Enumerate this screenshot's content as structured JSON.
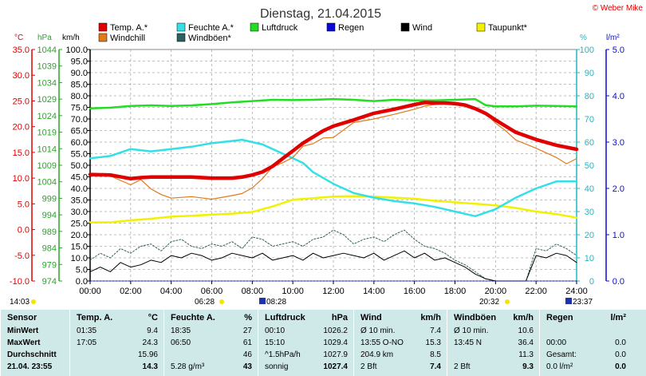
{
  "title": "Dienstag, 21.04.2015",
  "copyright": "© Weber Mike",
  "legend": [
    {
      "label": "Temp. A.*",
      "color": "#e00000"
    },
    {
      "label": "Feuchte A.*",
      "color": "#33e0e8"
    },
    {
      "label": "Luftdruck",
      "color": "#22dd22"
    },
    {
      "label": "Regen",
      "color": "#0a0ad8"
    },
    {
      "label": "Wind",
      "color": "#000000"
    },
    {
      "label": "Taupunkt*",
      "color": "#f2f200"
    },
    {
      "label": "Windchill",
      "color": "#e07a1a"
    },
    {
      "label": "Windböen*",
      "color": "#2f6060"
    }
  ],
  "axes_units": {
    "celsius": "°C",
    "hpa": "hPa",
    "kmh": "km/h",
    "percent": "%",
    "lm2": "l/m²"
  },
  "sun_times": {
    "rise_label": "06:28",
    "set_label": "20:32",
    "left_label": "14:03",
    "moonrise": "08:28",
    "moonset": "23:37"
  },
  "chart_data": {
    "type": "line",
    "title": "Dienstag, 21.04.2015",
    "x_ticks": [
      "00:00",
      "02:00",
      "04:00",
      "06:00",
      "08:00",
      "10:00",
      "12:00",
      "14:00",
      "16:00",
      "18:00",
      "20:00",
      "22:00",
      "24:00"
    ],
    "x_range_hours": [
      0,
      24
    ],
    "grid": true,
    "axes": {
      "celsius": {
        "ticks": [
          "35.0",
          "30.0",
          "25.0",
          "20.0",
          "15.0",
          "10.0",
          "5.0",
          "0.0",
          "-5.0",
          "-10.0"
        ],
        "range": [
          -10,
          35
        ],
        "color": "#e00000"
      },
      "hpa": {
        "ticks": [
          "1044",
          "1039",
          "1034",
          "1029",
          "1024",
          "1019",
          "1014",
          "1009",
          "1004",
          "999",
          "994",
          "989",
          "984",
          "979",
          "974"
        ],
        "range": [
          974,
          1044
        ],
        "color": "#22aa22"
      },
      "kmh": {
        "ticks": [
          "100.0",
          "95.0",
          "90.0",
          "85.0",
          "80.0",
          "75.0",
          "70.0",
          "65.0",
          "60.0",
          "55.0",
          "50.0",
          "45.0",
          "40.0",
          "35.0",
          "30.0",
          "25.0",
          "20.0",
          "15.0",
          "10.0",
          "5.0",
          "0.0"
        ],
        "range": [
          0,
          100
        ],
        "color": "#000000"
      },
      "percent": {
        "ticks": [
          "100",
          "90",
          "80",
          "70",
          "60",
          "50",
          "40",
          "30",
          "20",
          "10",
          "0"
        ],
        "range": [
          0,
          100
        ],
        "color": "#1fb8c0"
      },
      "lm2": {
        "ticks": [
          "5.0",
          "4.0",
          "3.0",
          "2.0",
          "1.0",
          "0.0"
        ],
        "range": [
          0,
          5
        ],
        "color": "#0a0ad8"
      }
    },
    "series": [
      {
        "name": "Temp. A.*",
        "axis": "celsius",
        "color": "#e00000",
        "x": [
          0,
          1,
          2,
          2.5,
          3,
          4,
          5,
          6,
          7,
          7.5,
          8,
          8.5,
          9,
          9.5,
          10,
          10.5,
          11,
          11.5,
          12,
          13,
          14,
          15,
          16,
          16.5,
          17,
          17.5,
          18,
          18.5,
          19,
          19.5,
          20,
          20.5,
          21,
          22,
          23,
          24
        ],
        "y": [
          10.7,
          10.6,
          9.9,
          10.1,
          10.2,
          10.2,
          10.2,
          10.0,
          10.0,
          10.2,
          10.6,
          11.2,
          12.3,
          13.8,
          15.3,
          16.8,
          18.0,
          19.2,
          20.1,
          21.3,
          22.6,
          23.4,
          24.3,
          24.7,
          24.6,
          24.6,
          24.5,
          24.2,
          23.5,
          22.6,
          21.3,
          20.1,
          18.9,
          17.5,
          16.4,
          15.6
        ]
      },
      {
        "name": "Windchill",
        "axis": "celsius",
        "color": "#e07a1a",
        "x": [
          0,
          1,
          2,
          2.5,
          3,
          3.5,
          4,
          5,
          6,
          7,
          7.5,
          8,
          8.5,
          9,
          9.5,
          10,
          10.5,
          11,
          11.5,
          12,
          13,
          14,
          15,
          16,
          16.5,
          17,
          17.5,
          18,
          18.5,
          19,
          19.5,
          20,
          20.5,
          21,
          22,
          23,
          23.5,
          24
        ],
        "y": [
          10.6,
          10.4,
          8.7,
          9.7,
          7.9,
          6.8,
          6.1,
          6.4,
          5.9,
          6.6,
          7.0,
          8.1,
          9.9,
          12.2,
          13.0,
          14.0,
          16.2,
          16.7,
          17.8,
          17.9,
          20.8,
          21.5,
          22.4,
          23.4,
          24.0,
          24.3,
          24.6,
          24.2,
          24.0,
          23.5,
          22.6,
          20.7,
          19.2,
          17.4,
          15.8,
          14.0,
          12.8,
          13.8
        ]
      },
      {
        "name": "Feuchte A.*",
        "axis": "percent",
        "color": "#33e0e8",
        "x": [
          0,
          1,
          2,
          3,
          4,
          5,
          6,
          7,
          7.5,
          8,
          8.5,
          9,
          9.5,
          10,
          10.5,
          11,
          12,
          13,
          14,
          15,
          16,
          17,
          18,
          19,
          20,
          21,
          22,
          23,
          24
        ],
        "y": [
          53,
          54,
          57,
          56,
          57,
          58,
          59.5,
          60.5,
          61,
          60,
          59,
          57,
          55,
          53,
          51,
          47,
          42,
          38,
          36,
          34.5,
          33.5,
          32,
          30,
          28,
          31,
          36,
          40,
          43,
          43
        ]
      },
      {
        "name": "Luftdruck",
        "axis": "hpa",
        "color": "#22dd22",
        "x": [
          0,
          1,
          2,
          3,
          4,
          5,
          6,
          7,
          8,
          9,
          10,
          11,
          12,
          13,
          14,
          15,
          16,
          17,
          18,
          19,
          19.5,
          20,
          21,
          22,
          23,
          24
        ],
        "y": [
          1026.2,
          1026.4,
          1026.9,
          1027.1,
          1026.9,
          1027.1,
          1027.5,
          1028.0,
          1028.4,
          1028.8,
          1028.7,
          1028.8,
          1029.0,
          1028.8,
          1028.4,
          1028.8,
          1028.6,
          1028.6,
          1028.8,
          1029.0,
          1027.2,
          1026.8,
          1026.8,
          1027.0,
          1026.9,
          1026.8
        ]
      },
      {
        "name": "Taupunkt*",
        "axis": "celsius",
        "color": "#f2f200",
        "x": [
          0,
          1,
          2,
          3,
          4,
          5,
          6,
          7,
          8,
          9,
          10,
          11,
          12,
          13,
          14,
          15,
          16,
          17,
          18,
          19,
          20,
          21,
          22,
          23,
          24
        ],
        "y": [
          1.4,
          1.4,
          1.8,
          2.1,
          2.5,
          2.7,
          2.9,
          3.1,
          3.4,
          4.5,
          5.8,
          6.1,
          6.4,
          6.5,
          6.4,
          6.2,
          6.0,
          5.6,
          5.3,
          5.0,
          4.7,
          4.2,
          3.5,
          3.0,
          2.3
        ]
      },
      {
        "name": "Regen",
        "axis": "lm2",
        "color": "#0a0ad8",
        "x": [
          0,
          24
        ],
        "y": [
          0,
          0
        ]
      },
      {
        "name": "Wind",
        "axis": "kmh",
        "color": "#000000",
        "x": [
          0,
          0.5,
          1,
          1.5,
          2,
          2.5,
          3,
          3.5,
          4,
          4.5,
          5,
          5.5,
          6,
          6.5,
          7,
          7.5,
          8,
          8.5,
          9,
          9.5,
          10,
          10.5,
          11,
          11.5,
          12,
          12.5,
          13,
          13.5,
          14,
          14.5,
          15,
          15.5,
          16,
          16.5,
          17,
          17.5,
          18,
          18.5,
          19,
          19.5,
          20,
          20.5,
          21,
          21.5,
          22,
          22.5,
          23,
          23.5,
          24
        ],
        "y": [
          4,
          6,
          4,
          8,
          6,
          7,
          9,
          8,
          11,
          10,
          12,
          11,
          9,
          10,
          12,
          11,
          10,
          12,
          9,
          10,
          11,
          9,
          12,
          10,
          11,
          12,
          11,
          10,
          12,
          9,
          11,
          13,
          10,
          12,
          9,
          10,
          8,
          6,
          3,
          1,
          0,
          0,
          0,
          0,
          11,
          10,
          12,
          11,
          8
        ]
      },
      {
        "name": "Windböen*",
        "axis": "kmh",
        "color": "#2f6060",
        "x": [
          0,
          0.5,
          1,
          1.5,
          2,
          2.5,
          3,
          3.5,
          4,
          4.5,
          5,
          5.5,
          6,
          6.5,
          7,
          7.5,
          8,
          8.5,
          9,
          9.5,
          10,
          10.5,
          11,
          11.5,
          12,
          12.5,
          13,
          13.5,
          14,
          14.5,
          15,
          15.5,
          16,
          16.5,
          17,
          17.5,
          18,
          18.5,
          19,
          19.5,
          20,
          20.5,
          21,
          21.5,
          22,
          22.5,
          23,
          23.5,
          24
        ],
        "y": [
          9,
          12,
          10,
          14,
          12,
          15,
          16,
          13,
          17,
          18,
          15,
          14,
          16,
          15,
          17,
          14,
          19,
          18,
          15,
          16,
          17,
          15,
          18,
          19,
          22,
          20,
          16,
          18,
          19,
          17,
          20,
          22,
          18,
          15,
          14,
          12,
          9,
          7,
          4,
          1,
          0,
          0,
          0,
          0,
          14,
          13,
          16,
          14,
          11
        ]
      }
    ]
  },
  "stats": {
    "columns": [
      {
        "header": [
          "Sensor",
          ""
        ],
        "rows": [
          [
            "MinWert",
            ""
          ],
          [
            "MaxWert",
            ""
          ],
          [
            "Durchschnitt",
            ""
          ],
          [
            "21.04. 23:55",
            ""
          ]
        ]
      },
      {
        "header": [
          "Temp. A.",
          "°C"
        ],
        "rows": [
          [
            "01:35",
            "9.4"
          ],
          [
            "17:05",
            "24.3"
          ],
          [
            "",
            "15.96"
          ],
          [
            "",
            "14.3"
          ]
        ]
      },
      {
        "header": [
          "Feuchte A.",
          "%"
        ],
        "rows": [
          [
            "18:35",
            "27"
          ],
          [
            "06:50",
            "61"
          ],
          [
            "",
            "46"
          ],
          [
            "5.28 g/m³",
            "43"
          ]
        ]
      },
      {
        "header": [
          "Luftdruck",
          "hPa"
        ],
        "rows": [
          [
            "00:10",
            "1026.2"
          ],
          [
            "15:10",
            "1029.4"
          ],
          [
            "^1.5hPa/h",
            "1027.9"
          ],
          [
            "sonnig",
            "1027.4"
          ]
        ]
      },
      {
        "header": [
          "Wind",
          "km/h"
        ],
        "rows": [
          [
            "Ø 10 min.",
            "7.4"
          ],
          [
            "13:55      O-NO",
            "15.3"
          ],
          [
            "204.9 km",
            "8.5"
          ],
          [
            "2 Bft",
            "7.4"
          ]
        ]
      },
      {
        "header": [
          "Windböen",
          "km/h"
        ],
        "rows": [
          [
            "Ø 10 min.",
            "10.6"
          ],
          [
            "13:45            N",
            "36.4"
          ],
          [
            "",
            "11.3"
          ],
          [
            "2 Bft",
            "9.3"
          ]
        ]
      },
      {
        "header": [
          "Regen",
          "l/m²"
        ],
        "rows": [
          [
            "",
            ""
          ],
          [
            "00:00",
            "0.0"
          ],
          [
            "Gesamt:",
            "0.0"
          ],
          [
            "0.0 l/m²",
            "0.0"
          ]
        ]
      }
    ]
  }
}
